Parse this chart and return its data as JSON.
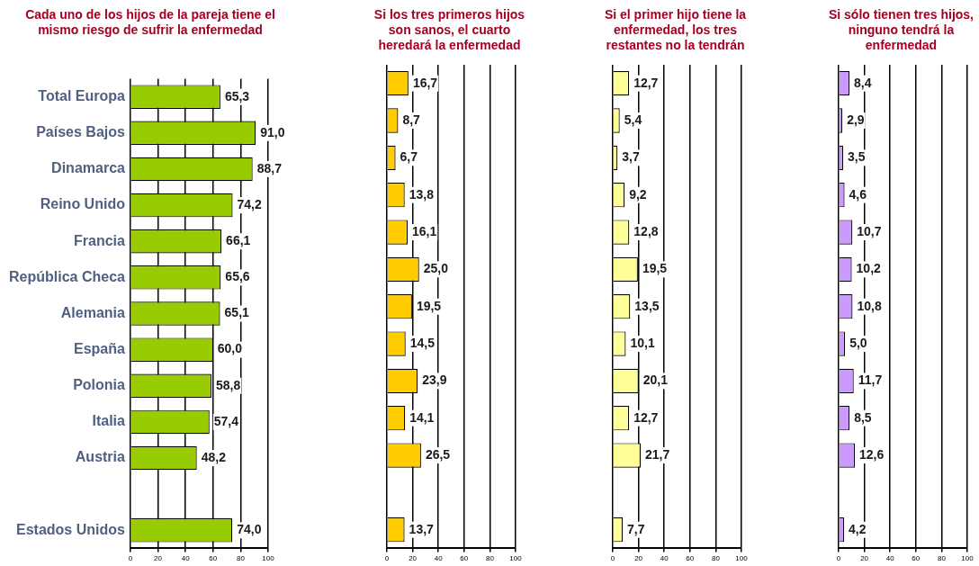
{
  "chart_data": [
    {
      "type": "bar",
      "orientation": "horizontal",
      "title": "Cada uno de los hijos de la pareja tiene el mismo riesgo de sufrir la enfermedad",
      "categories": [
        "Total Europa",
        "Países Bajos",
        "Dinamarca",
        "Reino Unido",
        "Francia",
        "República Checa",
        "Alemania",
        "España",
        "Polonia",
        "Italia",
        "Austria",
        null,
        "Estados Unidos"
      ],
      "values": [
        65.3,
        91.0,
        88.7,
        74.2,
        66.1,
        65.6,
        65.1,
        60.0,
        58.8,
        57.4,
        48.2,
        null,
        74.0
      ],
      "value_labels": [
        "65,3",
        "91,0",
        "88,7",
        "74,2",
        "66,1",
        "65,6",
        "65,1",
        "60,0",
        "58,8",
        "57,4",
        "48,2",
        null,
        "74,0"
      ],
      "color": "#99cc00",
      "xlim": [
        0,
        100
      ],
      "xticks": [
        0,
        20,
        40,
        60,
        80,
        100
      ],
      "grid": "x"
    },
    {
      "type": "bar",
      "orientation": "horizontal",
      "title": "Si los tres primeros hijos son sanos, el cuarto heredará la enfermedad",
      "categories": [
        null,
        null,
        null,
        null,
        null,
        null,
        null,
        null,
        null,
        null,
        null,
        null,
        null
      ],
      "values": [
        16.7,
        8.7,
        6.7,
        13.8,
        16.1,
        25.0,
        19.5,
        14.5,
        23.9,
        14.1,
        26.5,
        null,
        13.7
      ],
      "value_labels": [
        "16,7",
        "8,7",
        "6,7",
        "13,8",
        "16,1",
        "25,0",
        "19,5",
        "14,5",
        "23,9",
        "14,1",
        "26,5",
        null,
        "13,7"
      ],
      "color": "#ffcc00",
      "xlim": [
        0,
        100
      ],
      "xticks": [
        0,
        20,
        40,
        60,
        80,
        100
      ],
      "grid": "x",
      "tick_labels": "x"
    },
    {
      "type": "bar",
      "orientation": "horizontal",
      "title": "Si el primer hijo tiene la enfermedad, los tres restantes no la tendrán",
      "categories": [
        null,
        null,
        null,
        null,
        null,
        null,
        null,
        null,
        null,
        null,
        null,
        null,
        null
      ],
      "values": [
        12.7,
        5.4,
        3.7,
        9.2,
        12.8,
        19.5,
        13.5,
        10.1,
        20.1,
        12.7,
        21.7,
        null,
        7.7
      ],
      "value_labels": [
        "12,7",
        "5,4",
        "3,7",
        "9,2",
        "12,8",
        "19,5",
        "13,5",
        "10,1",
        "20,1",
        "12,7",
        "21,7",
        null,
        "7,7"
      ],
      "color": "#ffff99",
      "xlim": [
        0,
        100
      ],
      "xticks": [
        0,
        20,
        40,
        60,
        80,
        100
      ],
      "grid": "x",
      "tick_labels": "x"
    },
    {
      "type": "bar",
      "orientation": "horizontal",
      "title": "Si sólo tienen tres hijos, ninguno tendrá la enfermedad",
      "categories": [
        null,
        null,
        null,
        null,
        null,
        null,
        null,
        null,
        null,
        null,
        null,
        null,
        null
      ],
      "values": [
        8.4,
        2.9,
        3.5,
        4.6,
        10.7,
        10.2,
        10.8,
        5.0,
        11.7,
        8.5,
        12.6,
        null,
        4.2
      ],
      "value_labels": [
        "8,4",
        "2,9",
        "3,5",
        "4,6",
        "10,7",
        "10,2",
        "10,8",
        "5,0",
        "11,7",
        "8,5",
        "12,6",
        null,
        "4,2"
      ],
      "color": "#cc99ff",
      "xlim": [
        0,
        100
      ],
      "xticks": [
        0,
        20,
        40,
        60,
        80,
        100
      ],
      "grid": "x",
      "tick_labels": "x"
    }
  ]
}
